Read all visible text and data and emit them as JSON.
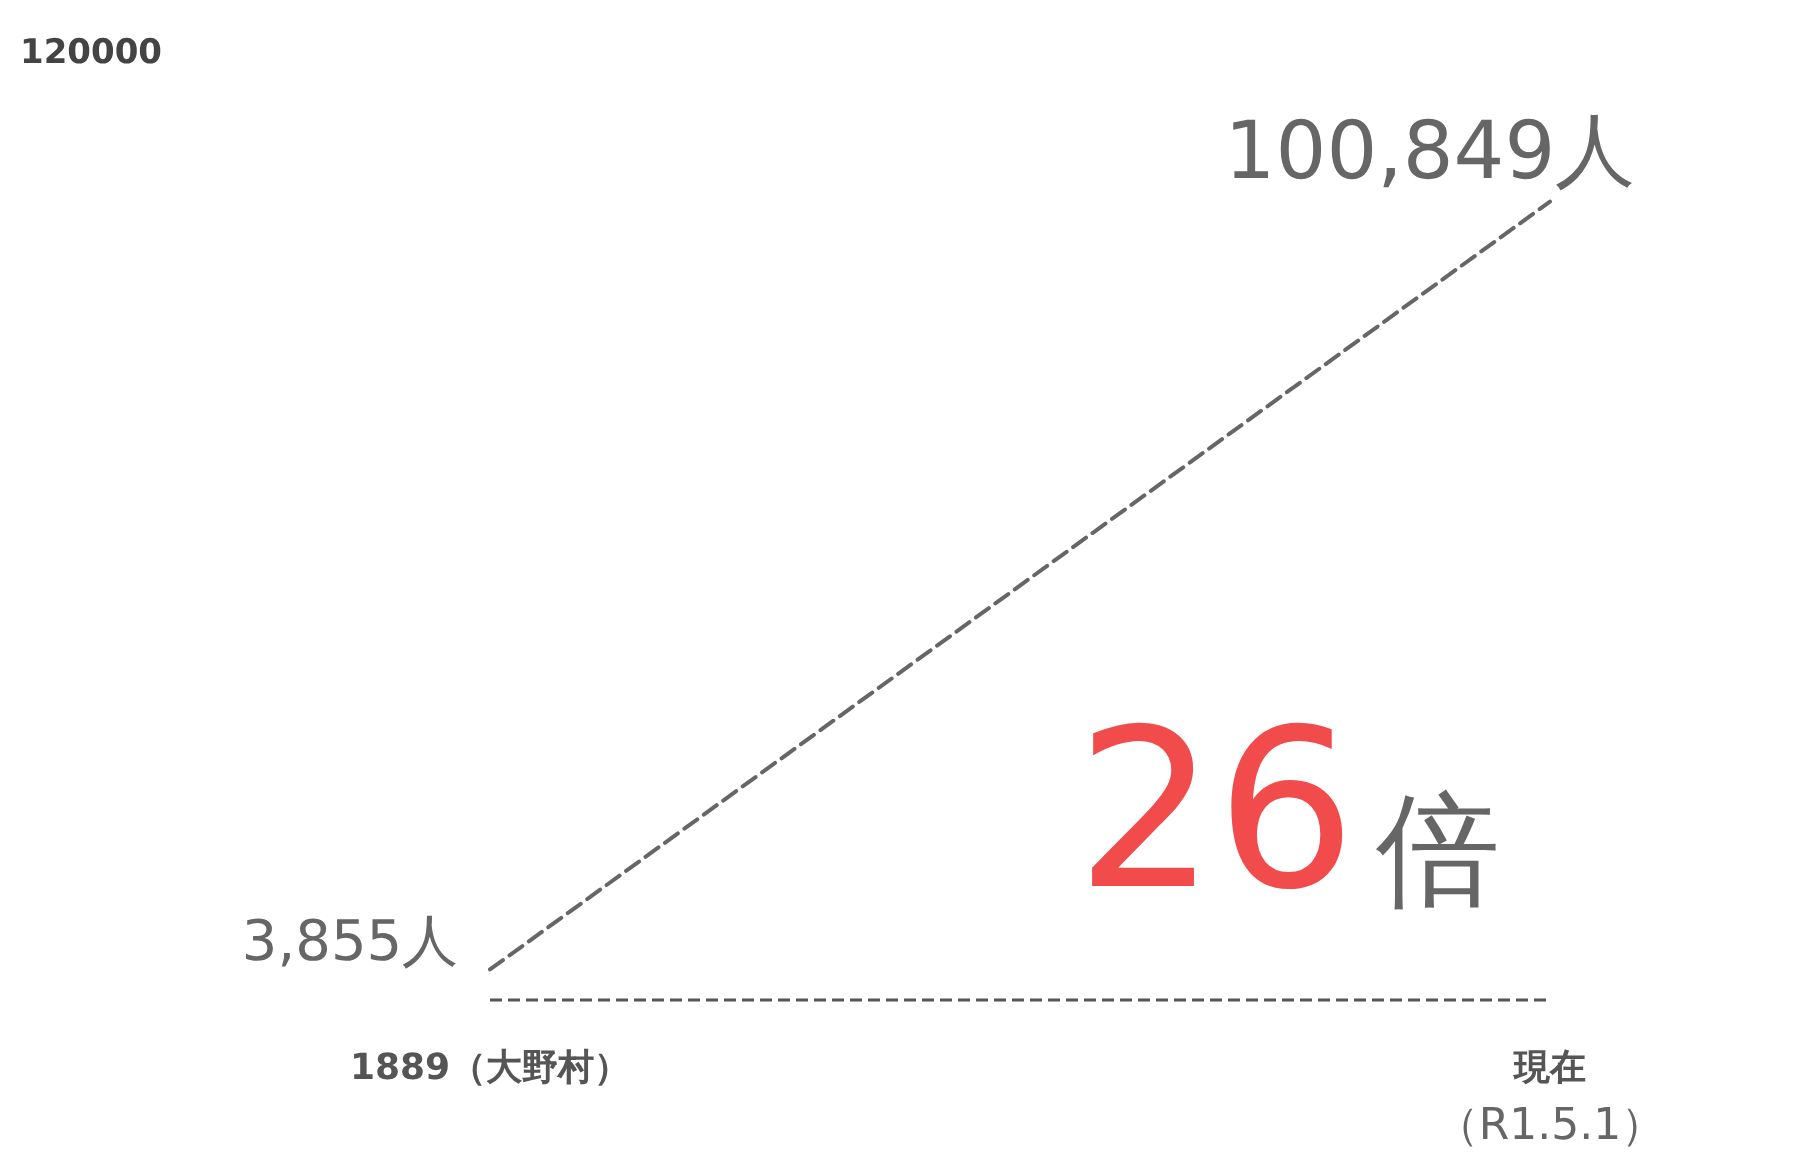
{
  "chart_data": {
    "type": "line",
    "categories": [
      "1889（大野村）",
      "現在（R1.5.1）"
    ],
    "series": [
      {
        "color": "#666666",
        "values": [
          3855,
          100849
        ],
        "value_labels": [
          "3,855人",
          "100,849人"
        ]
      }
    ],
    "marker": "none",
    "line_style": "dashed",
    "ref_lines": [
      {
        "axis": "y",
        "value": 0,
        "color": "#555555",
        "line_style": "dashed"
      }
    ],
    "annotations": [
      "26倍",
      "120000"
    ]
  }
}
